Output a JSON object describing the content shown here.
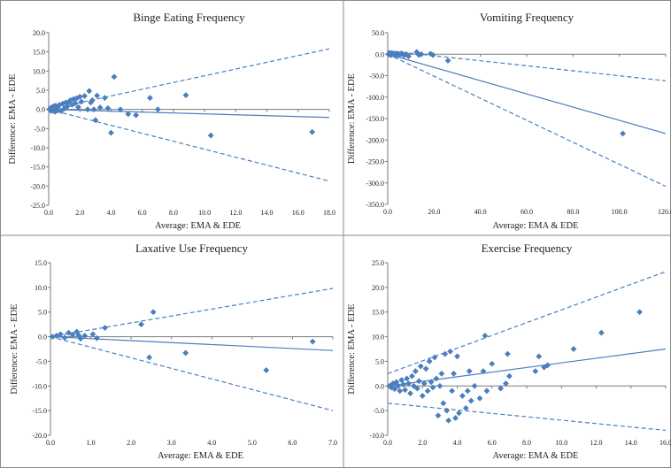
{
  "figure": {
    "line_color": "#4a7ebf",
    "marker_color": "#4a7ebf",
    "border_color": "#8a8a8a"
  },
  "chart_data": [
    {
      "type": "scatter",
      "title": "Binge Eating Frequency",
      "xlabel": "Average:  EMA & EDE",
      "ylabel": "Difference:  EMA - EDE",
      "xlim": [
        0,
        18
      ],
      "ylim": [
        -25,
        20
      ],
      "xticks": [
        0,
        2,
        4,
        6,
        8,
        10,
        12,
        14,
        16,
        18
      ],
      "xtick_labels": [
        "0.0",
        "2.0",
        "4.0",
        "6.0",
        "8.0",
        "10.0",
        "12.0",
        "14.0",
        "16.0",
        "18.0"
      ],
      "yticks": [
        20,
        15,
        10,
        5,
        0,
        -5,
        -10,
        -15,
        -20,
        -25
      ],
      "ytick_labels": [
        "20.0",
        "15.0",
        "10.0",
        "5.0",
        "0.0",
        "-5.0",
        "-10.0",
        "-15.0",
        "-20.0",
        "-25.0"
      ],
      "grid": false,
      "points": [
        [
          0.05,
          0
        ],
        [
          0.1,
          0.3
        ],
        [
          0.15,
          -0.4
        ],
        [
          0.2,
          0.5
        ],
        [
          0.25,
          -0.2
        ],
        [
          0.3,
          0.8
        ],
        [
          0.35,
          0.2
        ],
        [
          0.4,
          -0.6
        ],
        [
          0.45,
          1
        ],
        [
          0.5,
          0.4
        ],
        [
          0.55,
          -0.3
        ],
        [
          0.6,
          0.6
        ],
        [
          0.7,
          1.2
        ],
        [
          0.8,
          -0.4
        ],
        [
          0.9,
          1.5
        ],
        [
          1.0,
          0.2
        ],
        [
          1.1,
          1.8
        ],
        [
          1.2,
          0.8
        ],
        [
          1.3,
          2.0
        ],
        [
          1.4,
          2.4
        ],
        [
          1.5,
          1.2
        ],
        [
          1.6,
          2.7
        ],
        [
          1.7,
          1.6
        ],
        [
          1.8,
          2.9
        ],
        [
          1.9,
          0.6
        ],
        [
          2.0,
          3.3
        ],
        [
          2.1,
          2.0
        ],
        [
          2.3,
          3.5
        ],
        [
          2.5,
          0
        ],
        [
          2.6,
          4.8
        ],
        [
          2.7,
          1.8
        ],
        [
          2.8,
          2.4
        ],
        [
          2.9,
          0
        ],
        [
          3.0,
          -2.8
        ],
        [
          3.1,
          3.6
        ],
        [
          3.3,
          0.5
        ],
        [
          3.6,
          3.0
        ],
        [
          3.8,
          0.3
        ],
        [
          4.0,
          -6.1
        ],
        [
          4.2,
          8.5
        ],
        [
          4.6,
          0
        ],
        [
          5.1,
          -1.2
        ],
        [
          5.6,
          -1.5
        ],
        [
          6.5,
          3.0
        ],
        [
          7.0,
          0
        ],
        [
          8.8,
          3.7
        ],
        [
          10.4,
          -6.8
        ],
        [
          16.9,
          -5.9
        ]
      ],
      "bias_line": [
        [
          0,
          0
        ],
        [
          18,
          -2.1
        ]
      ],
      "upper_loa": [
        [
          0,
          0
        ],
        [
          18,
          15.8
        ]
      ],
      "lower_loa": [
        [
          0,
          0
        ],
        [
          18,
          -18.7
        ]
      ]
    },
    {
      "type": "scatter",
      "title": "Vomiting Frequency",
      "xlabel": "Average:  EMA & EDE",
      "ylabel": "Difference:  EMA - EDE",
      "xlim": [
        0,
        120
      ],
      "ylim": [
        -350,
        50
      ],
      "xticks": [
        0,
        20,
        40,
        60,
        80,
        100,
        120
      ],
      "xtick_labels": [
        "0.0",
        "20.0",
        "40.0",
        "60.0",
        "80.0",
        "100.0",
        "120.0"
      ],
      "yticks": [
        50,
        0,
        -50,
        -100,
        -150,
        -200,
        -250,
        -300,
        -350
      ],
      "ytick_labels": [
        "50.0",
        "0.0",
        "-50.0",
        "-100.0",
        "-150.0",
        "-200.0",
        "-250.0",
        "-300.0",
        "-350.0"
      ],
      "grid": false,
      "points": [
        [
          0.3,
          0
        ],
        [
          0.6,
          1
        ],
        [
          0.9,
          -1
        ],
        [
          1.2,
          0.5
        ],
        [
          1.5,
          -2
        ],
        [
          1.8,
          1
        ],
        [
          2.1,
          0
        ],
        [
          2.4,
          2
        ],
        [
          2.7,
          -1
        ],
        [
          3.0,
          0
        ],
        [
          3.4,
          1
        ],
        [
          3.8,
          -2
        ],
        [
          4.2,
          0
        ],
        [
          4.6,
          1
        ],
        [
          5.0,
          -1
        ],
        [
          5.5,
          0
        ],
        [
          6.0,
          2
        ],
        [
          7.0,
          -3
        ],
        [
          8.0,
          0
        ],
        [
          9.0,
          -5
        ],
        [
          12.5,
          5
        ],
        [
          13.5,
          -2
        ],
        [
          14.5,
          0
        ],
        [
          18.5,
          1
        ],
        [
          19.5,
          -2
        ],
        [
          26.0,
          -15
        ],
        [
          101.5,
          -185
        ]
      ],
      "bias_line": [
        [
          0,
          0
        ],
        [
          120,
          -185
        ]
      ],
      "upper_loa": [
        [
          0,
          8
        ],
        [
          120,
          -62
        ]
      ],
      "lower_loa": [
        [
          0,
          0
        ],
        [
          120,
          -308
        ]
      ]
    },
    {
      "type": "scatter",
      "title": "Laxative Use Frequency",
      "xlabel": "Average:  EMA & EDE",
      "ylabel": "Difference:  EMA - EDE",
      "xlim": [
        0,
        7
      ],
      "ylim": [
        -20,
        15
      ],
      "xticks": [
        0,
        1,
        2,
        3,
        4,
        5,
        6,
        7
      ],
      "xtick_labels": [
        "0.0",
        "1.0",
        "2.0",
        "3.0",
        "4.0",
        "5.0",
        "6.0",
        "7.0"
      ],
      "yticks": [
        15,
        10,
        5,
        0,
        -5,
        -10,
        -15,
        -20
      ],
      "ytick_labels": [
        "15.0",
        "10.0",
        "5.0",
        "0.0",
        "-5.0",
        "-10.0",
        "-15.0",
        "-20.0"
      ],
      "grid": false,
      "points": [
        [
          0.05,
          0
        ],
        [
          0.15,
          0.2
        ],
        [
          0.25,
          0.5
        ],
        [
          0.35,
          -0.2
        ],
        [
          0.45,
          0.8
        ],
        [
          0.55,
          0.4
        ],
        [
          0.65,
          1.0
        ],
        [
          0.7,
          0.3
        ],
        [
          0.75,
          -0.4
        ],
        [
          0.85,
          0.2
        ],
        [
          1.05,
          0.5
        ],
        [
          1.15,
          -0.3
        ],
        [
          1.35,
          1.8
        ],
        [
          2.25,
          2.5
        ],
        [
          2.45,
          -4.2
        ],
        [
          2.55,
          5.0
        ],
        [
          3.35,
          -3.3
        ],
        [
          5.35,
          -6.8
        ],
        [
          6.5,
          -1.0
        ]
      ],
      "bias_line": [
        [
          0,
          0
        ],
        [
          7,
          -2.8
        ]
      ],
      "upper_loa": [
        [
          0,
          0
        ],
        [
          7,
          9.8
        ]
      ],
      "lower_loa": [
        [
          0,
          0
        ],
        [
          7,
          -15.0
        ]
      ]
    },
    {
      "type": "scatter",
      "title": "Exercise Frequency",
      "xlabel": "Average:  EMA & EDE",
      "ylabel": "Difference:  EMA - EDE",
      "xlim": [
        0,
        16
      ],
      "ylim": [
        -10,
        25
      ],
      "xticks": [
        0,
        2,
        4,
        6,
        8,
        10,
        12,
        14,
        16
      ],
      "xtick_labels": [
        "0.0",
        "2.0",
        "4.0",
        "6.0",
        "8.0",
        "10.0",
        "12.0",
        "14.0",
        "16.0"
      ],
      "yticks": [
        25,
        20,
        15,
        10,
        5,
        0,
        -5,
        -10
      ],
      "ytick_labels": [
        "25.0",
        "20.0",
        "15.0",
        "10.0",
        "5.0",
        "0.0",
        "-5.0",
        "-10.0"
      ],
      "grid": false,
      "points": [
        [
          0.1,
          0
        ],
        [
          0.2,
          -0.3
        ],
        [
          0.3,
          0.5
        ],
        [
          0.4,
          -0.6
        ],
        [
          0.5,
          0.8
        ],
        [
          0.6,
          0
        ],
        [
          0.7,
          -1.0
        ],
        [
          0.8,
          1.2
        ],
        [
          0.9,
          0.3
        ],
        [
          1.0,
          -0.8
        ],
        [
          1.1,
          1.5
        ],
        [
          1.2,
          0.5
        ],
        [
          1.3,
          -1.5
        ],
        [
          1.4,
          2.0
        ],
        [
          1.5,
          0
        ],
        [
          1.6,
          3.0
        ],
        [
          1.7,
          -0.5
        ],
        [
          1.8,
          1.0
        ],
        [
          1.9,
          4.0
        ],
        [
          2.0,
          -2.0
        ],
        [
          2.1,
          0.5
        ],
        [
          2.2,
          3.5
        ],
        [
          2.3,
          -1.0
        ],
        [
          2.4,
          5.0
        ],
        [
          2.5,
          0.8
        ],
        [
          2.6,
          -0.3
        ],
        [
          2.7,
          5.8
        ],
        [
          2.8,
          1.5
        ],
        [
          2.9,
          -6.0
        ],
        [
          3.0,
          0
        ],
        [
          3.1,
          2.5
        ],
        [
          3.2,
          -3.5
        ],
        [
          3.3,
          6.5
        ],
        [
          3.4,
          -5.0
        ],
        [
          3.5,
          -7.0
        ],
        [
          3.6,
          7.0
        ],
        [
          3.7,
          -1.0
        ],
        [
          3.8,
          2.5
        ],
        [
          3.9,
          -6.5
        ],
        [
          4.0,
          6.0
        ],
        [
          4.1,
          -5.5
        ],
        [
          4.3,
          -2.0
        ],
        [
          4.5,
          -4.5
        ],
        [
          4.6,
          -1.0
        ],
        [
          4.7,
          3.0
        ],
        [
          4.8,
          -3.0
        ],
        [
          5.0,
          0
        ],
        [
          5.3,
          -2.5
        ],
        [
          5.5,
          3.0
        ],
        [
          5.7,
          -1.0
        ],
        [
          5.6,
          10.2
        ],
        [
          6.0,
          4.5
        ],
        [
          6.5,
          -0.5
        ],
        [
          6.8,
          0.5
        ],
        [
          6.9,
          6.5
        ],
        [
          7.0,
          2.0
        ],
        [
          8.5,
          3.0
        ],
        [
          8.7,
          6.0
        ],
        [
          9.0,
          3.8
        ],
        [
          9.2,
          4.2
        ],
        [
          10.7,
          7.5
        ],
        [
          12.3,
          10.8
        ],
        [
          14.5,
          15.0
        ]
      ],
      "bias_line": [
        [
          0,
          0
        ],
        [
          16,
          7.5
        ]
      ],
      "upper_loa": [
        [
          0,
          2.5
        ],
        [
          16,
          23.2
        ]
      ],
      "lower_loa": [
        [
          0,
          -3.5
        ],
        [
          16,
          -9.0
        ]
      ]
    }
  ]
}
